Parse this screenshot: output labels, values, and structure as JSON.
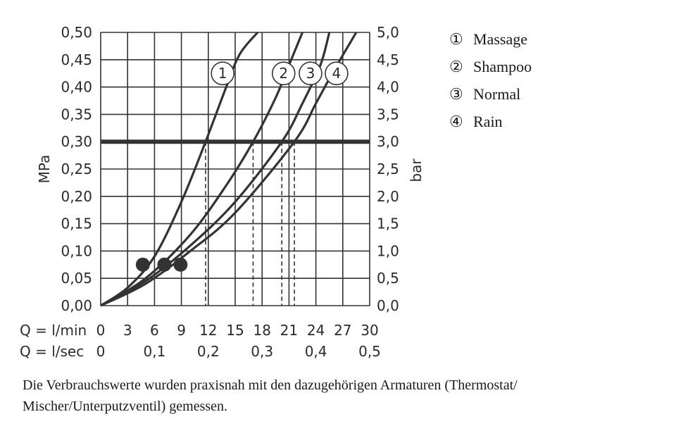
{
  "chart_data": {
    "type": "line",
    "ylabel_left": "MPa",
    "ylabel_right": "bar",
    "yticks_left": [
      "0,00",
      "0,05",
      "0,10",
      "0,15",
      "0,20",
      "0,25",
      "0,30",
      "0,35",
      "0,40",
      "0,45",
      "0,50"
    ],
    "yticks_right": [
      "0,0",
      "0,5",
      "1,0",
      "1,5",
      "2,0",
      "2,5",
      "3,0",
      "3,5",
      "4,0",
      "4,5",
      "5,0"
    ],
    "ylim": [
      0,
      0.5
    ],
    "xlim": [
      0,
      30
    ],
    "x_axis_1": {
      "label": "Q = l/min",
      "ticks": [
        "0",
        "3",
        "6",
        "9",
        "12",
        "15",
        "18",
        "21",
        "24",
        "27",
        "30"
      ],
      "values": [
        0,
        3,
        6,
        9,
        12,
        15,
        18,
        21,
        24,
        27,
        30
      ]
    },
    "x_axis_2": {
      "label": "Q = l/sec",
      "ticks": [
        "0",
        "0,1",
        "0,2",
        "0,3",
        "0,4",
        "0,5"
      ],
      "values": [
        0,
        6,
        12,
        18,
        24,
        30
      ]
    },
    "reference_line": {
      "y": 0.3
    },
    "series": [
      {
        "id": "1",
        "name": "Massage",
        "marker_label": "1",
        "x": [
          0,
          3,
          6,
          9,
          11.7,
          14,
          15.5,
          17.5
        ],
        "y": [
          0,
          0.033,
          0.09,
          0.19,
          0.3,
          0.4,
          0.46,
          0.5
        ]
      },
      {
        "id": "2",
        "name": "Shampoo",
        "x": [
          0,
          5,
          10,
          14,
          17,
          19.5,
          21,
          22.5
        ],
        "y": [
          0,
          0.05,
          0.13,
          0.22,
          0.3,
          0.38,
          0.44,
          0.5
        ]
      },
      {
        "id": "3",
        "name": "Normal",
        "x": [
          0,
          5,
          10,
          15,
          20.2,
          22.5,
          24.5,
          25.5
        ],
        "y": [
          0,
          0.045,
          0.11,
          0.19,
          0.3,
          0.37,
          0.44,
          0.5
        ]
      },
      {
        "id": "4",
        "name": "Rain",
        "x": [
          0,
          5,
          10,
          15,
          21.6,
          24,
          26,
          28.5
        ],
        "y": [
          0,
          0.04,
          0.1,
          0.17,
          0.3,
          0.37,
          0.43,
          0.5
        ]
      }
    ],
    "flow_at_reference": [
      11.7,
      17,
      20.2,
      21.6
    ],
    "series_labels": [
      {
        "text": "1",
        "x": 13.6,
        "y": 0.425
      },
      {
        "text": "2",
        "x": 20.4,
        "y": 0.425
      },
      {
        "text": "3",
        "x": 23.4,
        "y": 0.425
      },
      {
        "text": "4",
        "x": 26.3,
        "y": 0.425
      }
    ],
    "dots": [
      {
        "x": 4.7,
        "y": 0.075
      },
      {
        "x": 7.1,
        "y": 0.075
      },
      {
        "x": 8.9,
        "y": 0.075
      }
    ],
    "legend": [
      {
        "symbol": "①",
        "label": "Massage"
      },
      {
        "symbol": "②",
        "label": "Shampoo"
      },
      {
        "symbol": "③",
        "label": "Normal"
      },
      {
        "symbol": "④",
        "label": "Rain"
      }
    ],
    "legend_position": "right",
    "grid": true
  },
  "note": {
    "line1": "Die Verbrauchswerte wurden praxisnah mit den dazugehörigen Armaturen (Thermostat/",
    "line2": "Mischer/Unterputzventil) gemessen."
  }
}
